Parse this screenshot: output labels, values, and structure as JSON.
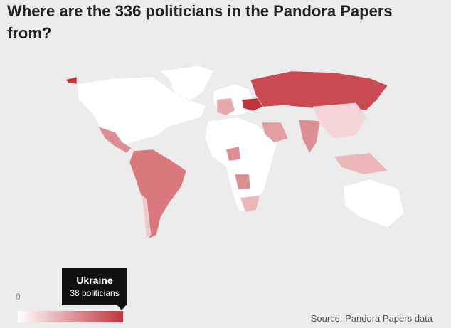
{
  "header": {
    "title": "Where are the 336 politicians in the Pandora Papers from?"
  },
  "legend": {
    "range": [
      0,
      38
    ],
    "min_label": "0",
    "low_color": "#ffffff",
    "high_color": "#c0353f"
  },
  "tooltip": {
    "country": "Ukraine",
    "value": 38,
    "value_label": "38 politicians"
  },
  "source": "Source: Pandora Papers data"
}
